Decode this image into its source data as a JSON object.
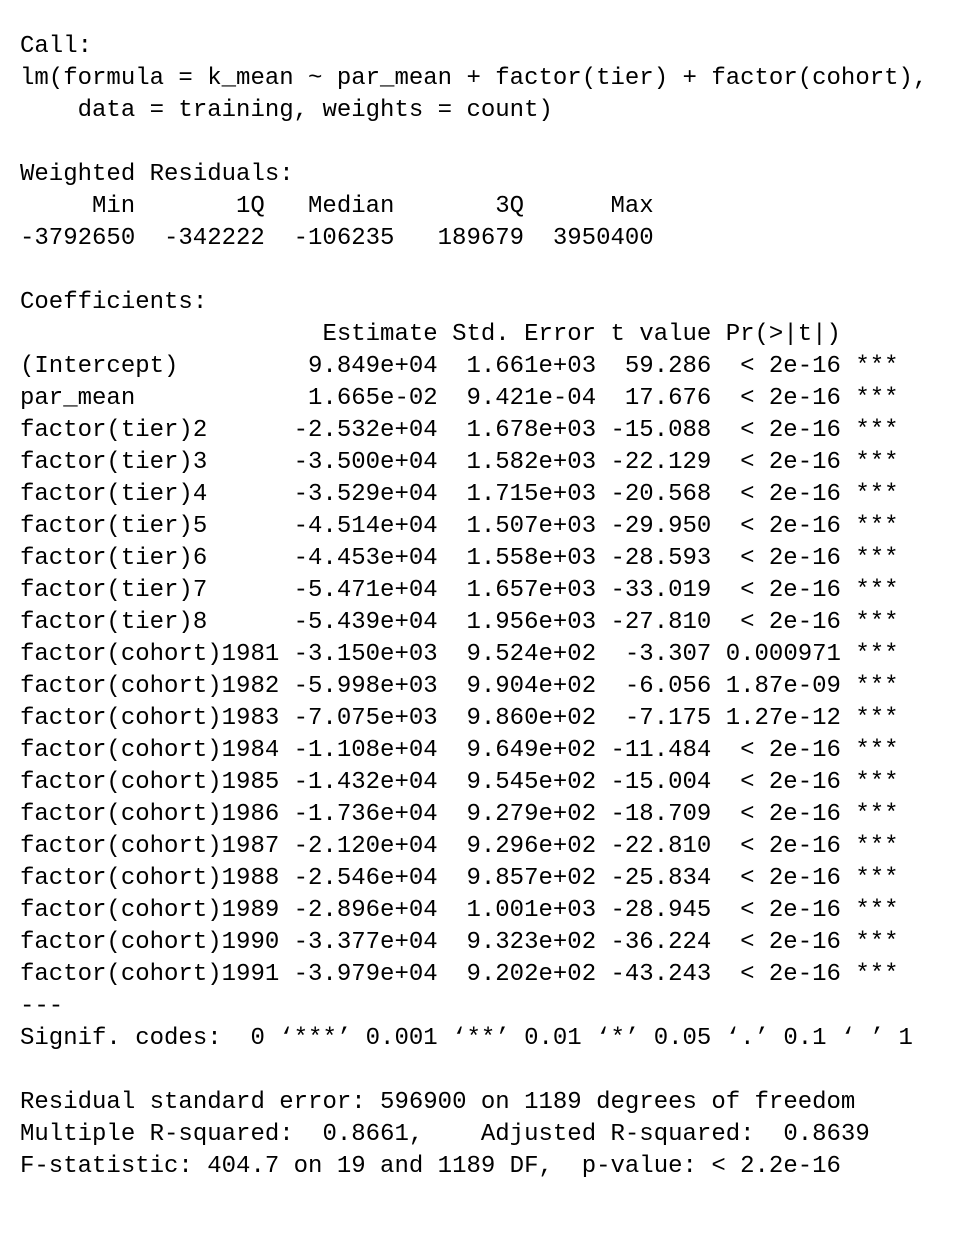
{
  "call": {
    "label": "Call:",
    "lines": [
      "lm(formula = k_mean ~ par_mean + factor(tier) + factor(cohort),",
      "    data = training, weights = count)"
    ]
  },
  "residuals": {
    "label": "Weighted Residuals:",
    "headers": [
      "Min",
      "1Q",
      "Median",
      "3Q",
      "Max"
    ],
    "values": [
      "-3792650",
      "-342222",
      "-106235",
      "189679",
      "3950400"
    ]
  },
  "coefficients": {
    "label": "Coefficients:",
    "headers": [
      "Estimate",
      "Std. Error",
      "t value",
      "Pr(>|t|)"
    ],
    "rows": [
      [
        "(Intercept)",
        "9.849e+04",
        "1.661e+03",
        "59.286",
        "< 2e-16",
        "***"
      ],
      [
        "par_mean",
        "1.665e-02",
        "9.421e-04",
        "17.676",
        "< 2e-16",
        "***"
      ],
      [
        "factor(tier)2",
        "-2.532e+04",
        "1.678e+03",
        "-15.088",
        "< 2e-16",
        "***"
      ],
      [
        "factor(tier)3",
        "-3.500e+04",
        "1.582e+03",
        "-22.129",
        "< 2e-16",
        "***"
      ],
      [
        "factor(tier)4",
        "-3.529e+04",
        "1.715e+03",
        "-20.568",
        "< 2e-16",
        "***"
      ],
      [
        "factor(tier)5",
        "-4.514e+04",
        "1.507e+03",
        "-29.950",
        "< 2e-16",
        "***"
      ],
      [
        "factor(tier)6",
        "-4.453e+04",
        "1.558e+03",
        "-28.593",
        "< 2e-16",
        "***"
      ],
      [
        "factor(tier)7",
        "-5.471e+04",
        "1.657e+03",
        "-33.019",
        "< 2e-16",
        "***"
      ],
      [
        "factor(tier)8",
        "-5.439e+04",
        "1.956e+03",
        "-27.810",
        "< 2e-16",
        "***"
      ],
      [
        "factor(cohort)1981",
        "-3.150e+03",
        "9.524e+02",
        "-3.307",
        "0.000971",
        "***"
      ],
      [
        "factor(cohort)1982",
        "-5.998e+03",
        "9.904e+02",
        "-6.056",
        "1.87e-09",
        "***"
      ],
      [
        "factor(cohort)1983",
        "-7.075e+03",
        "9.860e+02",
        "-7.175",
        "1.27e-12",
        "***"
      ],
      [
        "factor(cohort)1984",
        "-1.108e+04",
        "9.649e+02",
        "-11.484",
        "< 2e-16",
        "***"
      ],
      [
        "factor(cohort)1985",
        "-1.432e+04",
        "9.545e+02",
        "-15.004",
        "< 2e-16",
        "***"
      ],
      [
        "factor(cohort)1986",
        "-1.736e+04",
        "9.279e+02",
        "-18.709",
        "< 2e-16",
        "***"
      ],
      [
        "factor(cohort)1987",
        "-2.120e+04",
        "9.296e+02",
        "-22.810",
        "< 2e-16",
        "***"
      ],
      [
        "factor(cohort)1988",
        "-2.546e+04",
        "9.857e+02",
        "-25.834",
        "< 2e-16",
        "***"
      ],
      [
        "factor(cohort)1989",
        "-2.896e+04",
        "1.001e+03",
        "-28.945",
        "< 2e-16",
        "***"
      ],
      [
        "factor(cohort)1990",
        "-3.377e+04",
        "9.323e+02",
        "-36.224",
        "< 2e-16",
        "***"
      ],
      [
        "factor(cohort)1991",
        "-3.979e+04",
        "9.202e+02",
        "-43.243",
        "< 2e-16",
        "***"
      ]
    ]
  },
  "separator": "---",
  "signif_codes": "Signif. codes:  0 ‘***’ 0.001 ‘**’ 0.01 ‘*’ 0.05 ‘.’ 0.1 ‘ ’ 1",
  "summary": [
    "Residual standard error: 596900 on 1189 degrees of freedom",
    "Multiple R-squared:  0.8661,    Adjusted R-squared:  0.8639",
    "F-statistic: 404.7 on 19 and 1189 DF,  p-value: < 2.2e-16"
  ]
}
